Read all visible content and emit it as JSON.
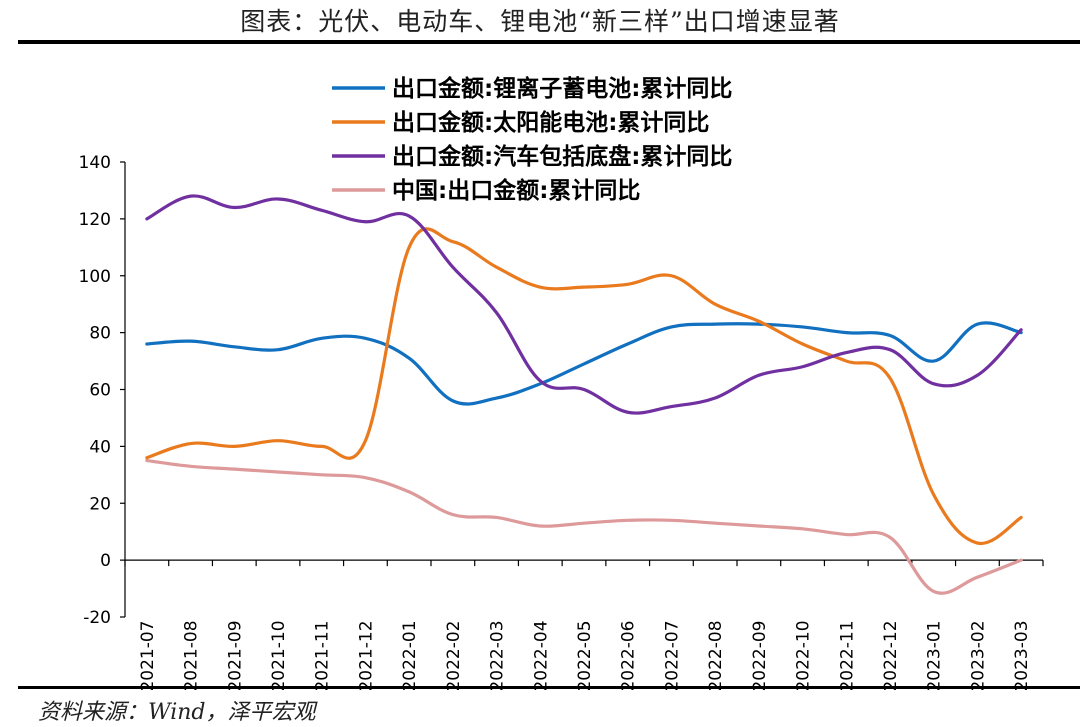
{
  "header": {
    "title": "图表：光伏、电动车、锂电池“新三样”出口增速显著"
  },
  "footer": {
    "source": "资料来源：Wind，泽平宏观"
  },
  "chart_data": {
    "type": "line",
    "title": "图表：光伏、电动车、锂电池“新三样”出口增速显著",
    "xlabel": "",
    "ylabel": "",
    "ylim": [
      -20,
      140
    ],
    "yticks": [
      -20,
      0,
      20,
      40,
      60,
      80,
      100,
      120,
      140
    ],
    "grid": false,
    "legend_position": "top-right",
    "categories": [
      "2021-07",
      "2021-08",
      "2021-09",
      "2021-10",
      "2021-11",
      "2021-12",
      "2022-01",
      "2022-02",
      "2022-03",
      "2022-04",
      "2022-05",
      "2022-06",
      "2022-07",
      "2022-08",
      "2022-09",
      "2022-10",
      "2022-11",
      "2022-12",
      "2023-01",
      "2023-02",
      "2023-03"
    ],
    "series": [
      {
        "name": "出口金额:锂离子蓄电池:累计同比",
        "color": "#1170BF",
        "values": [
          76,
          77,
          75,
          74,
          78,
          78,
          71,
          56,
          57,
          62,
          69,
          76,
          82,
          83,
          83,
          82,
          80,
          79,
          70,
          83,
          80
        ]
      },
      {
        "name": "出口金额:太阳能电池:累计同比",
        "color": "#E97A1E",
        "values": [
          36,
          41,
          40,
          42,
          40,
          42,
          110,
          112,
          103,
          96,
          96,
          97,
          100,
          90,
          84,
          76,
          70,
          64,
          23,
          6,
          15
        ]
      },
      {
        "name": "出口金额:汽车包括底盘:累计同比",
        "color": "#7030A0",
        "values": [
          120,
          128,
          124,
          127,
          123,
          119,
          121,
          103,
          87,
          63,
          60,
          52,
          54,
          57,
          65,
          68,
          73,
          74,
          62,
          65,
          81
        ]
      },
      {
        "name": "中国:出口金额:累计同比",
        "color": "#DE9A9A",
        "values": [
          35,
          33,
          32,
          31,
          30,
          29,
          24,
          16,
          15,
          12,
          13,
          14,
          14,
          13,
          12,
          11,
          9,
          8,
          -11,
          -6,
          0
        ]
      }
    ]
  }
}
